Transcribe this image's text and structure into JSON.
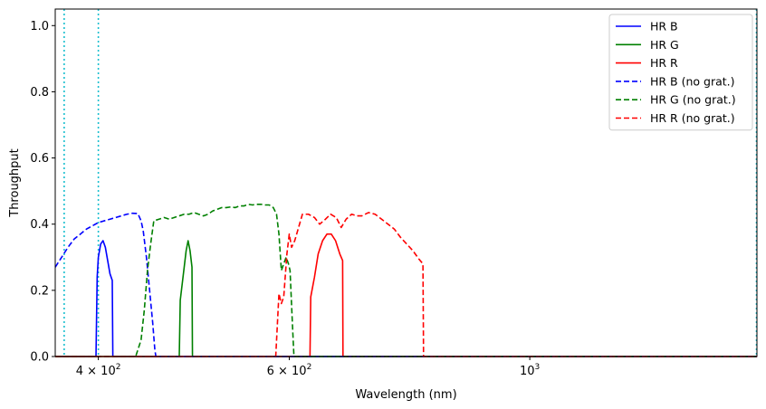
{
  "chart_data": {
    "type": "line",
    "title": "",
    "xlabel": "Wavelength (nm)",
    "ylabel": "Throughput",
    "xscale": "log",
    "xlim": [
      365,
      1620
    ],
    "ylim": [
      0,
      1.05
    ],
    "grid": false,
    "legend_position": "top-right",
    "x_ticks": [
      {
        "value": 400,
        "label": "4 × 10",
        "exp": "2"
      },
      {
        "value": 600,
        "label": "6 × 10",
        "exp": "2"
      },
      {
        "value": 1000,
        "label": "10",
        "exp": "3"
      }
    ],
    "y_ticks": [
      {
        "value": 0.0,
        "label": "0.0"
      },
      {
        "value": 0.2,
        "label": "0.2"
      },
      {
        "value": 0.4,
        "label": "0.4"
      },
      {
        "value": 0.6,
        "label": "0.6"
      },
      {
        "value": 0.8,
        "label": "0.8"
      },
      {
        "value": 1.0,
        "label": "1.0"
      }
    ],
    "vlines": [
      {
        "x": 372,
        "color": "#17becf",
        "style": "dotted"
      },
      {
        "x": 400,
        "color": "#17becf",
        "style": "dotted"
      },
      {
        "x": 1620,
        "color": "#17becf",
        "style": "dotted"
      }
    ],
    "series": [
      {
        "name": "HR B",
        "color": "#0000ff",
        "dash": "solid",
        "points": [
          [
            365,
            0
          ],
          [
            398,
            0
          ],
          [
            399,
            0.24
          ],
          [
            400,
            0.3
          ],
          [
            402,
            0.34
          ],
          [
            404,
            0.35
          ],
          [
            406,
            0.33
          ],
          [
            408,
            0.29
          ],
          [
            410,
            0.25
          ],
          [
            412,
            0.23
          ],
          [
            412.5,
            0
          ],
          [
            1620,
            0
          ]
        ]
      },
      {
        "name": "HR G",
        "color": "#008000",
        "dash": "solid",
        "points": [
          [
            365,
            0
          ],
          [
            475,
            0
          ],
          [
            476,
            0.17
          ],
          [
            478,
            0.22
          ],
          [
            480,
            0.27
          ],
          [
            482,
            0.32
          ],
          [
            484,
            0.35
          ],
          [
            486,
            0.32
          ],
          [
            488,
            0.27
          ],
          [
            488.5,
            0
          ],
          [
            1620,
            0
          ]
        ]
      },
      {
        "name": "HR R",
        "color": "#ff0000",
        "dash": "solid",
        "points": [
          [
            365,
            0
          ],
          [
            627,
            0
          ],
          [
            628,
            0.18
          ],
          [
            633,
            0.24
          ],
          [
            638,
            0.31
          ],
          [
            644,
            0.35
          ],
          [
            650,
            0.37
          ],
          [
            656,
            0.37
          ],
          [
            662,
            0.35
          ],
          [
            668,
            0.31
          ],
          [
            672,
            0.29
          ],
          [
            672.5,
            0
          ],
          [
            1620,
            0
          ]
        ]
      },
      {
        "name": "HR B (no grat.)",
        "color": "#0000ff",
        "dash": "dashed",
        "points": [
          [
            365,
            0.27
          ],
          [
            370,
            0.3
          ],
          [
            375,
            0.33
          ],
          [
            380,
            0.355
          ],
          [
            385,
            0.37
          ],
          [
            390,
            0.385
          ],
          [
            395,
            0.395
          ],
          [
            400,
            0.405
          ],
          [
            405,
            0.41
          ],
          [
            410,
            0.415
          ],
          [
            415,
            0.42
          ],
          [
            420,
            0.425
          ],
          [
            425,
            0.43
          ],
          [
            430,
            0.433
          ],
          [
            435,
            0.432
          ],
          [
            438,
            0.41
          ],
          [
            440,
            0.38
          ],
          [
            443,
            0.3
          ],
          [
            446,
            0.2
          ],
          [
            449,
            0.1
          ],
          [
            451,
            0.02
          ],
          [
            452,
            0
          ],
          [
            1620,
            0
          ]
        ]
      },
      {
        "name": "HR G (no grat.)",
        "color": "#008000",
        "dash": "dashed",
        "points": [
          [
            365,
            0
          ],
          [
            433,
            0
          ],
          [
            438,
            0.05
          ],
          [
            441,
            0.14
          ],
          [
            444,
            0.26
          ],
          [
            447,
            0.34
          ],
          [
            450,
            0.41
          ],
          [
            455,
            0.415
          ],
          [
            460,
            0.42
          ],
          [
            465,
            0.415
          ],
          [
            470,
            0.42
          ],
          [
            475,
            0.425
          ],
          [
            480,
            0.43
          ],
          [
            485,
            0.43
          ],
          [
            490,
            0.435
          ],
          [
            495,
            0.43
          ],
          [
            500,
            0.425
          ],
          [
            505,
            0.43
          ],
          [
            510,
            0.44
          ],
          [
            515,
            0.445
          ],
          [
            520,
            0.45
          ],
          [
            525,
            0.45
          ],
          [
            530,
            0.452
          ],
          [
            535,
            0.45
          ],
          [
            540,
            0.455
          ],
          [
            545,
            0.455
          ],
          [
            550,
            0.46
          ],
          [
            555,
            0.458
          ],
          [
            560,
            0.46
          ],
          [
            565,
            0.46
          ],
          [
            570,
            0.458
          ],
          [
            575,
            0.458
          ],
          [
            580,
            0.45
          ],
          [
            584,
            0.43
          ],
          [
            587,
            0.37
          ],
          [
            590,
            0.26
          ],
          [
            593,
            0.28
          ],
          [
            596,
            0.3
          ],
          [
            599,
            0.28
          ],
          [
            601,
            0.26
          ],
          [
            604,
            0.1
          ],
          [
            606,
            0
          ],
          [
            1620,
            0
          ]
        ]
      },
      {
        "name": "HR R (no grat.)",
        "color": "#ff0000",
        "dash": "dashed",
        "points": [
          [
            365,
            0
          ],
          [
            583,
            0
          ],
          [
            587,
            0.19
          ],
          [
            590,
            0.16
          ],
          [
            593,
            0.18
          ],
          [
            597,
            0.31
          ],
          [
            600,
            0.37
          ],
          [
            603,
            0.33
          ],
          [
            607,
            0.35
          ],
          [
            612,
            0.39
          ],
          [
            617,
            0.43
          ],
          [
            625,
            0.43
          ],
          [
            633,
            0.42
          ],
          [
            640,
            0.4
          ],
          [
            648,
            0.415
          ],
          [
            655,
            0.43
          ],
          [
            663,
            0.42
          ],
          [
            670,
            0.39
          ],
          [
            677,
            0.415
          ],
          [
            685,
            0.43
          ],
          [
            693,
            0.425
          ],
          [
            700,
            0.425
          ],
          [
            710,
            0.435
          ],
          [
            720,
            0.43
          ],
          [
            730,
            0.415
          ],
          [
            740,
            0.4
          ],
          [
            750,
            0.385
          ],
          [
            760,
            0.36
          ],
          [
            770,
            0.34
          ],
          [
            780,
            0.32
          ],
          [
            790,
            0.295
          ],
          [
            797,
            0.28
          ],
          [
            798,
            0
          ],
          [
            1620,
            0
          ]
        ]
      }
    ]
  }
}
